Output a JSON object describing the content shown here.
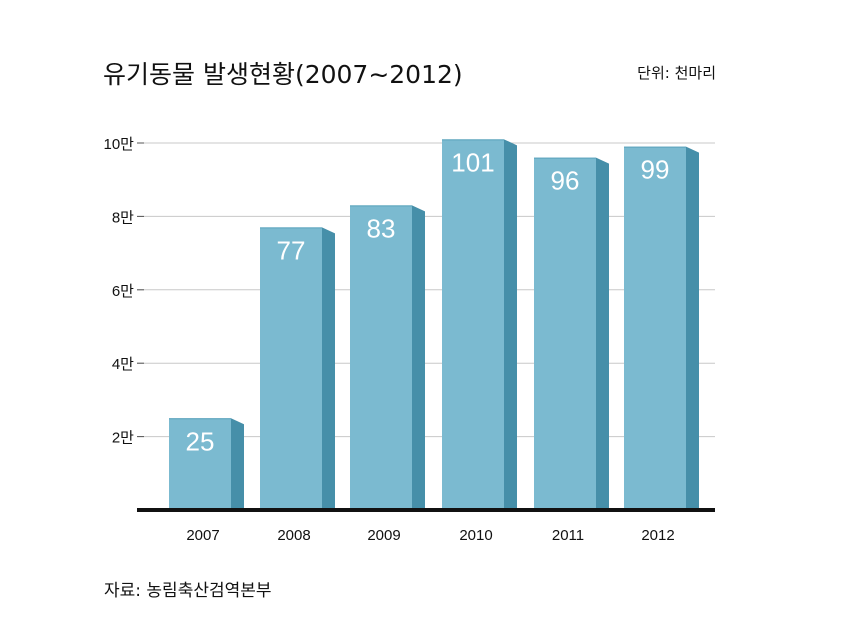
{
  "title": "유기동물 발생현황(2007∼2012)",
  "unit_label": "단위: 천마리",
  "source": "자료: 농림축산검역본부",
  "colors": {
    "bar_front": "#7bbad0",
    "bar_side": "#468fa9",
    "bar_top": "#5aa2bb",
    "grid": "#c8c8c8",
    "baseline": "#111111"
  },
  "chart_data": {
    "type": "bar",
    "title": "유기동물 발생현황(2007∼2012)",
    "xlabel": "",
    "ylabel": "",
    "unit": "단위: 천마리",
    "categories": [
      "2007",
      "2008",
      "2009",
      "2010",
      "2011",
      "2012"
    ],
    "values": [
      25,
      77,
      83,
      101,
      96,
      99
    ],
    "value_labels": [
      "25",
      "77",
      "83",
      "101",
      "96",
      "99"
    ],
    "ylim": [
      0,
      100
    ],
    "yticks": [
      {
        "value": 20,
        "label": "2만"
      },
      {
        "value": 40,
        "label": "4만"
      },
      {
        "value": 60,
        "label": "6만"
      },
      {
        "value": 80,
        "label": "8만"
      },
      {
        "value": 100,
        "label": "10만"
      }
    ],
    "grid": true,
    "legend": "none"
  }
}
